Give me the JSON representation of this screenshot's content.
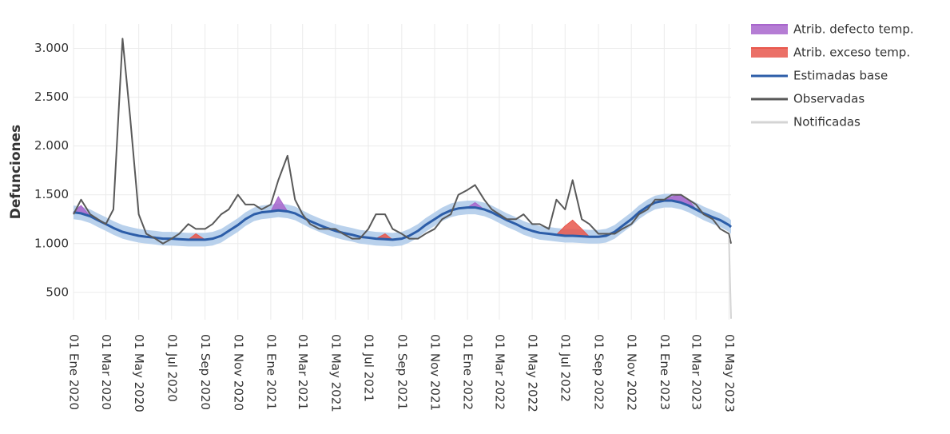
{
  "chart_data": {
    "type": "line",
    "y_label": "Defunciones",
    "legend": "right",
    "grid": true,
    "band_color": "#b9d1ec",
    "x": [
      "2020-01-01",
      "2020-01-15",
      "2020-02-01",
      "2020-02-15",
      "2020-03-01",
      "2020-03-15",
      "2020-04-01",
      "2020-04-15",
      "2020-05-01",
      "2020-05-15",
      "2020-06-01",
      "2020-06-15",
      "2020-07-01",
      "2020-07-15",
      "2020-08-01",
      "2020-08-15",
      "2020-09-01",
      "2020-09-15",
      "2020-10-01",
      "2020-10-15",
      "2020-11-01",
      "2020-11-15",
      "2020-12-01",
      "2020-12-15",
      "2021-01-01",
      "2021-01-15",
      "2021-02-01",
      "2021-02-15",
      "2021-03-01",
      "2021-03-15",
      "2021-04-01",
      "2021-04-15",
      "2021-05-01",
      "2021-05-15",
      "2021-06-01",
      "2021-06-15",
      "2021-07-01",
      "2021-07-15",
      "2021-08-01",
      "2021-08-15",
      "2021-09-01",
      "2021-09-15",
      "2021-10-01",
      "2021-10-15",
      "2021-11-01",
      "2021-11-15",
      "2021-12-01",
      "2021-12-15",
      "2022-01-01",
      "2022-01-15",
      "2022-02-01",
      "2022-02-15",
      "2022-03-01",
      "2022-03-15",
      "2022-04-01",
      "2022-04-15",
      "2022-05-01",
      "2022-05-15",
      "2022-06-01",
      "2022-06-15",
      "2022-07-01",
      "2022-07-15",
      "2022-08-01",
      "2022-08-15",
      "2022-09-01",
      "2022-09-15",
      "2022-10-01",
      "2022-10-15",
      "2022-11-01",
      "2022-11-15",
      "2022-12-01",
      "2022-12-15",
      "2023-01-01",
      "2023-01-15",
      "2023-02-01",
      "2023-02-15",
      "2023-03-01",
      "2023-03-15",
      "2023-04-01",
      "2023-04-15",
      "2023-05-01",
      "2023-05-05"
    ],
    "xlim": [
      "2020-01-01",
      "2023-05-05"
    ],
    "xticks": [
      {
        "value": "2020-01-01",
        "label": "01 Ene 2020"
      },
      {
        "value": "2020-03-01",
        "label": "01 Mar 2020"
      },
      {
        "value": "2020-05-01",
        "label": "01 May 2020"
      },
      {
        "value": "2020-07-01",
        "label": "01 Jul 2020"
      },
      {
        "value": "2020-09-01",
        "label": "01 Sep 2020"
      },
      {
        "value": "2020-11-01",
        "label": "01 Nov 2020"
      },
      {
        "value": "2021-01-01",
        "label": "01 Ene 2021"
      },
      {
        "value": "2021-03-01",
        "label": "01 Mar 2021"
      },
      {
        "value": "2021-05-01",
        "label": "01 May 2021"
      },
      {
        "value": "2021-07-01",
        "label": "01 Jul 2021"
      },
      {
        "value": "2021-09-01",
        "label": "01 Sep 2021"
      },
      {
        "value": "2021-11-01",
        "label": "01 Nov 2021"
      },
      {
        "value": "2022-01-01",
        "label": "01 Ene 2022"
      },
      {
        "value": "2022-03-01",
        "label": "01 Mar 2022"
      },
      {
        "value": "2022-05-01",
        "label": "01 May 2022"
      },
      {
        "value": "2022-07-01",
        "label": "01 Jul 2022"
      },
      {
        "value": "2022-09-01",
        "label": "01 Sep 2022"
      },
      {
        "value": "2022-11-01",
        "label": "01 Nov 2022"
      },
      {
        "value": "2023-01-01",
        "label": "01 Ene 2023"
      },
      {
        "value": "2023-03-01",
        "label": "01 Mar 2023"
      },
      {
        "value": "2023-05-01",
        "label": "01 May 2023"
      }
    ],
    "ylim": [
      220,
      3250
    ],
    "yticks": [
      500,
      {
        "value": 1000,
        "label": "1.000"
      },
      {
        "value": 1500,
        "label": "1.500"
      },
      {
        "value": 2000,
        "label": "2.000"
      },
      {
        "value": 2500,
        "label": "2.500"
      },
      {
        "value": 3000,
        "label": "3.000"
      }
    ],
    "series": [
      {
        "name": "Atrib. defecto temp.",
        "color": "#a866cc",
        "style": "area",
        "values": [
          1320,
          1390,
          1280,
          null,
          null,
          null,
          null,
          null,
          null,
          null,
          null,
          null,
          null,
          null,
          null,
          null,
          null,
          null,
          null,
          null,
          null,
          null,
          null,
          null,
          1330,
          1480,
          1330,
          null,
          null,
          null,
          null,
          null,
          null,
          null,
          null,
          null,
          null,
          null,
          null,
          null,
          null,
          null,
          null,
          null,
          null,
          null,
          null,
          null,
          1370,
          1420,
          1350,
          null,
          null,
          null,
          null,
          null,
          null,
          null,
          null,
          null,
          null,
          null,
          null,
          null,
          null,
          null,
          null,
          null,
          null,
          null,
          null,
          null,
          1440,
          1480,
          1500,
          1450,
          1350,
          null,
          null,
          null,
          null,
          null
        ]
      },
      {
        "name": "Atrib. exceso temp.",
        "color": "#e8574c",
        "style": "area",
        "values": [
          null,
          null,
          null,
          null,
          null,
          null,
          null,
          null,
          null,
          null,
          null,
          null,
          null,
          null,
          1040,
          1100,
          1040,
          null,
          null,
          null,
          null,
          null,
          null,
          null,
          null,
          null,
          null,
          null,
          null,
          null,
          null,
          null,
          null,
          null,
          null,
          null,
          null,
          1050,
          1100,
          1040,
          null,
          null,
          null,
          null,
          null,
          null,
          null,
          null,
          null,
          null,
          null,
          null,
          null,
          null,
          null,
          null,
          null,
          null,
          null,
          1090,
          1180,
          1240,
          1150,
          1070,
          null,
          null,
          null,
          null,
          null,
          null,
          null,
          null,
          null,
          null,
          null,
          null,
          null,
          null,
          null,
          null,
          null,
          null
        ]
      },
      {
        "name": "Estimadas base",
        "color": "#2c5da8",
        "style": "line",
        "values": [
          1320,
          1310,
          1280,
          1240,
          1200,
          1160,
          1120,
          1100,
          1080,
          1070,
          1060,
          1050,
          1050,
          1045,
          1040,
          1040,
          1040,
          1050,
          1080,
          1130,
          1190,
          1250,
          1300,
          1320,
          1330,
          1340,
          1330,
          1310,
          1270,
          1230,
          1190,
          1160,
          1130,
          1110,
          1090,
          1070,
          1060,
          1050,
          1045,
          1040,
          1050,
          1080,
          1130,
          1190,
          1250,
          1300,
          1340,
          1360,
          1370,
          1370,
          1350,
          1320,
          1280,
          1240,
          1200,
          1160,
          1130,
          1110,
          1100,
          1090,
          1080,
          1080,
          1075,
          1070,
          1070,
          1080,
          1120,
          1180,
          1250,
          1320,
          1380,
          1420,
          1440,
          1440,
          1420,
          1390,
          1350,
          1310,
          1270,
          1240,
          1190,
          1170
        ],
        "band_lower": [
          1250,
          1240,
          1210,
          1170,
          1130,
          1090,
          1050,
          1030,
          1010,
          1000,
          990,
          980,
          980,
          975,
          970,
          970,
          970,
          980,
          1010,
          1060,
          1120,
          1180,
          1230,
          1250,
          1260,
          1270,
          1260,
          1240,
          1200,
          1160,
          1120,
          1090,
          1060,
          1040,
          1020,
          1000,
          990,
          980,
          975,
          970,
          980,
          1010,
          1060,
          1120,
          1180,
          1230,
          1270,
          1290,
          1300,
          1300,
          1280,
          1250,
          1210,
          1170,
          1130,
          1090,
          1060,
          1040,
          1030,
          1020,
          1010,
          1010,
          1005,
          1000,
          1000,
          1010,
          1050,
          1110,
          1180,
          1250,
          1310,
          1350,
          1370,
          1370,
          1350,
          1320,
          1280,
          1240,
          1200,
          1170,
          1120,
          1100
        ],
        "band_upper": [
          1390,
          1380,
          1350,
          1310,
          1270,
          1230,
          1190,
          1170,
          1150,
          1140,
          1130,
          1120,
          1120,
          1115,
          1110,
          1110,
          1110,
          1120,
          1150,
          1200,
          1260,
          1320,
          1370,
          1390,
          1400,
          1410,
          1400,
          1380,
          1340,
          1300,
          1260,
          1230,
          1200,
          1180,
          1160,
          1140,
          1130,
          1120,
          1115,
          1110,
          1120,
          1150,
          1200,
          1260,
          1320,
          1370,
          1410,
          1430,
          1440,
          1440,
          1420,
          1390,
          1350,
          1310,
          1270,
          1230,
          1200,
          1180,
          1170,
          1160,
          1150,
          1150,
          1145,
          1140,
          1140,
          1150,
          1190,
          1250,
          1320,
          1390,
          1450,
          1490,
          1510,
          1510,
          1490,
          1460,
          1420,
          1380,
          1340,
          1310,
          1260,
          1240
        ]
      },
      {
        "name": "Observadas",
        "color": "#595959",
        "style": "line",
        "values": [
          1300,
          1450,
          1300,
          1250,
          1200,
          1350,
          3100,
          2300,
          1300,
          1100,
          1050,
          1000,
          1050,
          1100,
          1200,
          1150,
          1150,
          1200,
          1300,
          1350,
          1500,
          1400,
          1400,
          1350,
          1400,
          1650,
          1900,
          1450,
          1300,
          1200,
          1150,
          1150,
          1150,
          1100,
          1050,
          1050,
          1150,
          1300,
          1300,
          1150,
          1100,
          1050,
          1050,
          1100,
          1150,
          1250,
          1300,
          1500,
          1550,
          1600,
          1450,
          1350,
          1300,
          1250,
          1250,
          1300,
          1200,
          1200,
          1150,
          1450,
          1350,
          1650,
          1250,
          1200,
          1100,
          1100,
          1100,
          1150,
          1200,
          1300,
          1350,
          1450,
          1450,
          1500,
          1500,
          1450,
          1400,
          1300,
          1250,
          1150,
          1100,
          1000
        ]
      },
      {
        "name": "Notificadas",
        "color": "#d4d4d4",
        "style": "line",
        "values": [
          null,
          null,
          null,
          null,
          null,
          null,
          null,
          null,
          null,
          null,
          null,
          null,
          null,
          null,
          null,
          null,
          null,
          null,
          null,
          null,
          null,
          null,
          null,
          null,
          null,
          null,
          null,
          null,
          null,
          null,
          null,
          null,
          null,
          null,
          null,
          null,
          null,
          null,
          null,
          null,
          null,
          null,
          null,
          null,
          null,
          null,
          null,
          null,
          null,
          null,
          null,
          null,
          null,
          null,
          null,
          null,
          null,
          null,
          null,
          null,
          null,
          null,
          null,
          null,
          null,
          null,
          null,
          null,
          null,
          null,
          null,
          null,
          null,
          null,
          null,
          null,
          null,
          null,
          null,
          null,
          1050,
          230
        ]
      }
    ]
  }
}
